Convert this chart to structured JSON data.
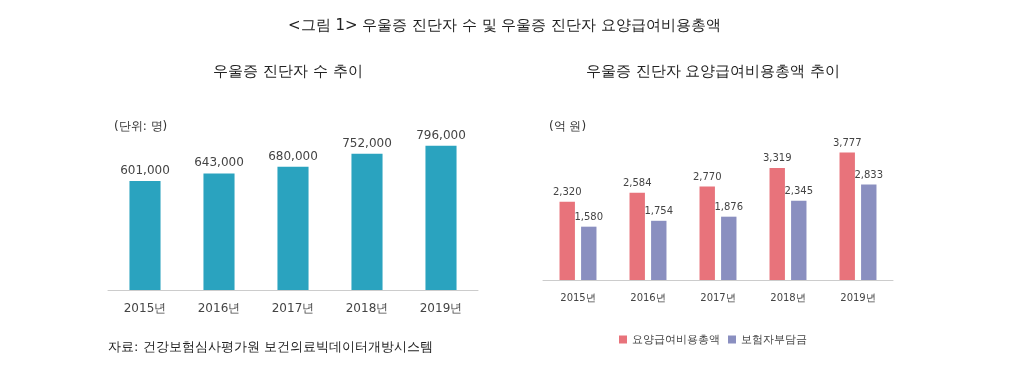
{
  "chart_data": [
    {
      "type": "bar",
      "title": "<그림 1> 우울증 진단자 수 및 우울증 진단자 요양급여비용총액",
      "subtitle": "우울증 진단자 수 추이",
      "annotations": [
        "(단위: 명)",
        "자료: 건강보험심사평가원 보건의료빅데이터개방시스템"
      ],
      "categories": [
        "2015년",
        "2016년",
        "2017년",
        "2018년",
        "2019년"
      ],
      "values": [
        601000,
        643000,
        680000,
        752000,
        796000
      ],
      "value_labels": [
        "601,000",
        "643,000",
        "680,000",
        "752,000",
        "796,000"
      ],
      "color": "#2aa3bf",
      "legend": false,
      "grid": false,
      "tick_labels": "x"
    },
    {
      "type": "bar",
      "subtitle": "우울증 진단자 요양급여비용총액 추이",
      "annotations": [
        "(억 원)"
      ],
      "categories": [
        "2015년",
        "2016년",
        "2017년",
        "2018년",
        "2019년"
      ],
      "series": [
        {
          "name": "요양급여비용총액",
          "color": "#e8737b",
          "values": [
            2320,
            2584,
            2770,
            3319,
            3777
          ],
          "value_labels": [
            "2,320",
            "2,584",
            "2,770",
            "3,319",
            "3,777"
          ]
        },
        {
          "name": "보험자부담금",
          "color": "#8a8fc0",
          "values": [
            1580,
            1754,
            1876,
            2345,
            2833
          ],
          "value_labels": [
            "1,580",
            "1,754",
            "1,876",
            "2,345",
            "2,833"
          ]
        }
      ],
      "legend": "bottom",
      "grid": false,
      "tick_labels": "x"
    }
  ]
}
